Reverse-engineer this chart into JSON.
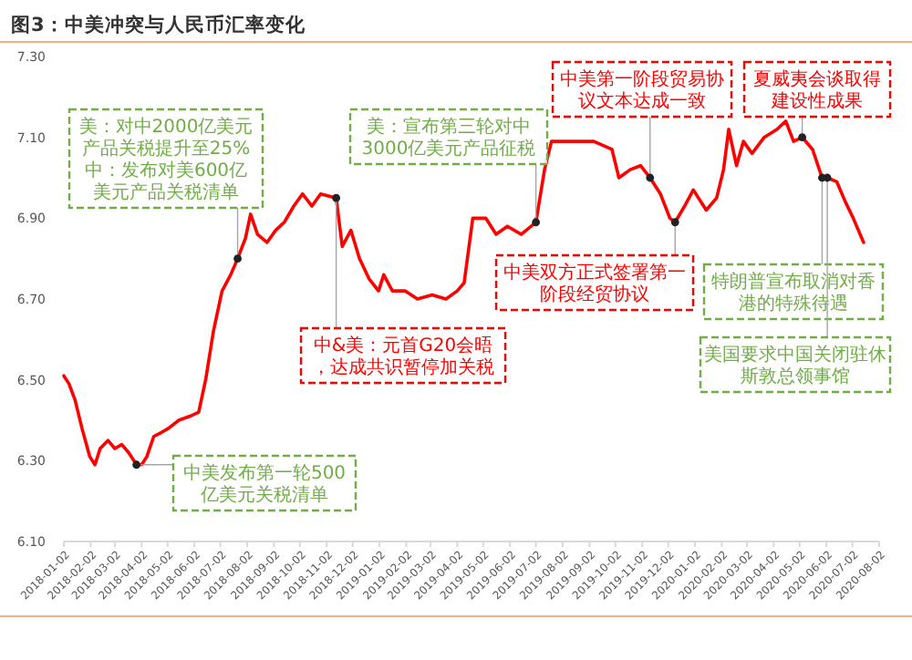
{
  "chart_data": {
    "type": "line",
    "title": "图3：中美冲突与人民币汇率变化",
    "xlim": [
      "2018-01-02",
      "2020-08-02"
    ],
    "xticks": [
      "2018-01-02",
      "2018-02-02",
      "2018-03-02",
      "2018-04-02",
      "2018-05-02",
      "2018-06-02",
      "2018-07-02",
      "2018-08-02",
      "2018-09-02",
      "2018-10-02",
      "2018-11-02",
      "2018-12-02",
      "2019-01-02",
      "2019-02-02",
      "2019-03-02",
      "2019-04-02",
      "2019-05-02",
      "2019-06-02",
      "2019-07-02",
      "2019-08-02",
      "2019-09-02",
      "2019-10-02",
      "2019-11-02",
      "2019-12-02",
      "2020-01-02",
      "2020-02-02",
      "2020-03-02",
      "2020-04-02",
      "2020-05-02",
      "2020-06-02",
      "2020-07-02",
      "2020-08-02"
    ],
    "ylim": [
      6.1,
      7.3
    ],
    "yticks": [
      {
        "value": 6.1,
        "label": "6.10"
      },
      {
        "value": 6.3,
        "label": "6.30"
      },
      {
        "value": 6.5,
        "label": "6.50"
      },
      {
        "value": 6.7,
        "label": "6.70"
      },
      {
        "value": 6.9,
        "label": "6.90"
      },
      {
        "value": 7.1,
        "label": "7.10"
      },
      {
        "value": 7.3,
        "label": "7.30"
      }
    ],
    "grid": false,
    "marker": "none",
    "line_style": "solid",
    "series": [
      {
        "color": "#ff0000",
        "x": [
          "2018-01-02",
          "2018-01-08",
          "2018-01-15",
          "2018-01-23",
          "2018-02-01",
          "2018-02-07",
          "2018-02-13",
          "2018-02-22",
          "2018-03-02",
          "2018-03-10",
          "2018-03-18",
          "2018-03-27",
          "2018-04-02",
          "2018-04-08",
          "2018-04-16",
          "2018-04-25",
          "2018-05-03",
          "2018-05-15",
          "2018-05-28",
          "2018-06-07",
          "2018-06-15",
          "2018-06-24",
          "2018-07-04",
          "2018-07-14",
          "2018-07-22",
          "2018-07-31",
          "2018-08-06",
          "2018-08-14",
          "2018-08-25",
          "2018-09-04",
          "2018-09-14",
          "2018-09-25",
          "2018-10-05",
          "2018-10-16",
          "2018-10-26",
          "2018-11-13",
          "2018-11-20",
          "2018-11-30",
          "2018-12-10",
          "2018-12-21",
          "2019-01-01",
          "2019-01-07",
          "2019-01-17",
          "2019-02-01",
          "2019-02-15",
          "2019-03-04",
          "2019-03-20",
          "2019-04-02",
          "2019-04-10",
          "2019-04-20",
          "2019-05-05",
          "2019-05-17",
          "2019-05-30",
          "2019-06-15",
          "2019-07-02",
          "2019-07-12",
          "2019-07-20",
          "2019-08-06",
          "2019-09-07",
          "2019-09-28",
          "2019-10-06",
          "2019-10-19",
          "2019-10-31",
          "2019-11-11",
          "2019-11-23",
          "2019-12-04",
          "2019-12-10",
          "2019-12-21",
          "2019-12-31",
          "2020-01-15",
          "2020-01-27",
          "2020-02-04",
          "2020-02-10",
          "2020-02-19",
          "2020-02-27",
          "2020-03-08",
          "2020-03-22",
          "2020-04-06",
          "2020-04-16",
          "2020-04-25",
          "2020-05-05",
          "2020-05-17",
          "2020-05-28",
          "2020-06-03",
          "2020-06-14",
          "2020-06-24",
          "2020-07-03",
          "2020-07-15"
        ],
        "values": [
          6.51,
          6.49,
          6.45,
          6.38,
          6.31,
          6.29,
          6.33,
          6.35,
          6.33,
          6.34,
          6.32,
          6.29,
          6.29,
          6.31,
          6.36,
          6.37,
          6.38,
          6.4,
          6.41,
          6.42,
          6.5,
          6.62,
          6.72,
          6.76,
          6.8,
          6.85,
          6.91,
          6.86,
          6.84,
          6.87,
          6.89,
          6.93,
          6.96,
          6.93,
          6.96,
          6.95,
          6.83,
          6.87,
          6.8,
          6.75,
          6.72,
          6.76,
          6.72,
          6.72,
          6.7,
          6.71,
          6.7,
          6.72,
          6.74,
          6.9,
          6.9,
          6.86,
          6.88,
          6.86,
          6.89,
          7.02,
          7.09,
          7.09,
          7.09,
          7.07,
          7.0,
          7.02,
          7.03,
          7.0,
          6.96,
          6.9,
          6.89,
          6.93,
          6.97,
          6.92,
          6.95,
          7.02,
          7.12,
          7.03,
          7.09,
          7.06,
          7.1,
          7.12,
          7.14,
          7.09,
          7.1,
          7.07,
          7.0,
          7.0,
          6.99,
          6.94,
          6.9,
          6.84
        ]
      }
    ],
    "annotations": [
      {
        "text": "中美发布第一轮500亿美元关税清单",
        "x": "2018-03-27",
        "y": 6.29
      },
      {
        "text": "美：对中2000亿美元产品关税提升至25%中：发布对美600亿美元产品关税清单",
        "x": "2018-07-22",
        "y": 6.8
      },
      {
        "text": "中&美：元首G20会晤，达成共识暂停加关税",
        "x": "2018-11-13",
        "y": 6.95
      },
      {
        "text": "美：宣布第三轮对中3000亿美元产品征税",
        "x": "2019-07-02",
        "y": 6.89
      },
      {
        "text": "中美双方正式签署第一阶段经贸协议",
        "x": "2019-12-10",
        "y": 6.89
      },
      {
        "text": "中美第一阶段贸易协议文本达成一致",
        "x": "2019-11-11",
        "y": 7.0
      },
      {
        "text": "夏威夷会谈取得建设性成果",
        "x": "2020-05-05",
        "y": 7.1
      },
      {
        "text": "特朗普宣布取消对香港的特殊待遇",
        "x": "2020-05-28",
        "y": 7.0
      },
      {
        "text": "美国要求中国关闭驻休斯敦总领事馆",
        "x": "2020-06-03",
        "y": 7.0
      }
    ]
  }
}
